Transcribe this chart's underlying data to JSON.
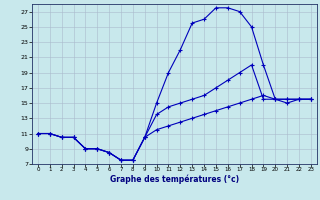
{
  "xlabel": "Graphe des températures (°c)",
  "bg": "#c8e8ec",
  "grid_color": "#aabbcc",
  "lc": "#0000bb",
  "xlim": [
    -0.5,
    23.5
  ],
  "ylim": [
    7,
    28
  ],
  "xticks": [
    0,
    1,
    2,
    3,
    4,
    5,
    6,
    7,
    8,
    9,
    10,
    11,
    12,
    13,
    14,
    15,
    16,
    17,
    18,
    19,
    20,
    21,
    22,
    23
  ],
  "yticks": [
    7,
    9,
    11,
    13,
    15,
    17,
    19,
    21,
    23,
    25,
    27
  ],
  "curve1": {
    "x": [
      0,
      1,
      2,
      3,
      4,
      5,
      6,
      7,
      8,
      9,
      10,
      11,
      12,
      13,
      14,
      15,
      16,
      17,
      18,
      19,
      20,
      21,
      22,
      23
    ],
    "y": [
      11,
      11,
      10.5,
      10.5,
      9,
      9,
      8.5,
      7.5,
      7.5,
      10.5,
      15,
      19,
      22,
      25.5,
      26,
      27.5,
      27.5,
      27,
      25,
      20,
      15.5,
      15,
      15.5,
      15.5
    ]
  },
  "curve2": {
    "x": [
      0,
      1,
      2,
      3,
      4,
      5,
      6,
      7,
      8,
      9,
      10,
      11,
      12,
      13,
      14,
      15,
      16,
      17,
      18,
      19,
      20,
      21,
      22,
      23
    ],
    "y": [
      11,
      11,
      10.5,
      10.5,
      9,
      9,
      8.5,
      7.5,
      7.5,
      10.5,
      13.5,
      14.5,
      15,
      15.5,
      16,
      17,
      18,
      19,
      20,
      15.5,
      15.5,
      15.5,
      15.5,
      15.5
    ]
  },
  "curve3": {
    "x": [
      0,
      1,
      2,
      3,
      4,
      5,
      6,
      7,
      8,
      9,
      10,
      11,
      12,
      13,
      14,
      15,
      16,
      17,
      18,
      19,
      20,
      21,
      22,
      23
    ],
    "y": [
      11,
      11,
      10.5,
      10.5,
      9,
      9,
      8.5,
      7.5,
      7.5,
      10.5,
      11.5,
      12,
      12.5,
      13,
      13.5,
      14,
      14.5,
      15,
      15.5,
      16,
      15.5,
      15.5,
      15.5,
      15.5
    ]
  },
  "figsize": [
    3.2,
    2.0
  ],
  "dpi": 100
}
